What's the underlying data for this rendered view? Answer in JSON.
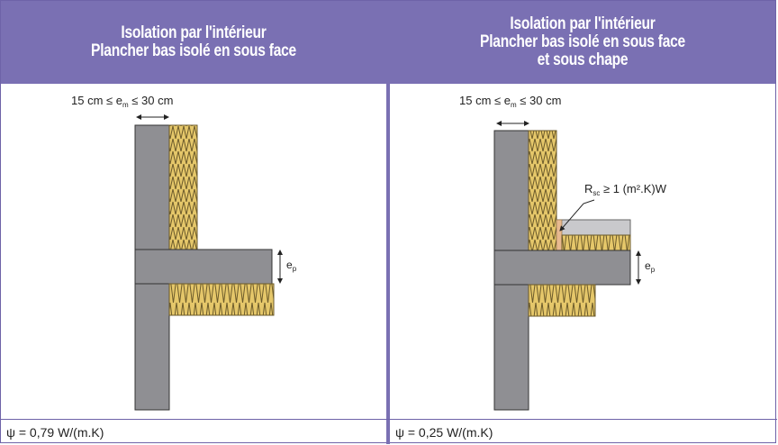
{
  "left": {
    "header": [
      "Isolation par l'intérieur",
      "Plancher bas isolé en sous face"
    ],
    "dim_top": "15 cm ≤ e",
    "dim_top_sub": "m",
    "dim_top_end": " ≤ 30 cm",
    "ep_label": "e",
    "ep_sub": "p",
    "psi": "ψ = 0,79 W/(m.K)"
  },
  "right": {
    "header": [
      "Isolation par l'intérieur",
      "Plancher bas isolé en sous face",
      "et sous chape"
    ],
    "dim_top": "15 cm ≤ e",
    "dim_top_sub": "m",
    "dim_top_end": " ≤ 30 cm",
    "ep_label": "e",
    "ep_sub": "p",
    "rc_label": "R",
    "rc_sub": "sc",
    "rc_end": " ≥ 1 (m².K)W",
    "psi": "ψ = 0,25 W/(m.K)"
  },
  "colors": {
    "header_bg": "#7a70b3",
    "concrete": "#8f8f93",
    "insulation": "#e5c76a",
    "screed": "#c9c9cc",
    "strip": "#e8b990"
  }
}
